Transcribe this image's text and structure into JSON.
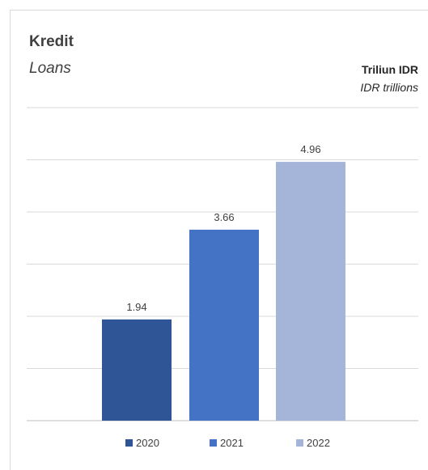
{
  "chart_data": {
    "type": "bar",
    "title": "Kredit",
    "subtitle": "Loans",
    "unit_id": "Triliun IDR",
    "unit_en": "IDR trillions",
    "categories": [
      "2020",
      "2021",
      "2022"
    ],
    "values": [
      1.94,
      3.66,
      4.96
    ],
    "data_labels": [
      "1.94",
      "3.66",
      "4.96"
    ],
    "colors": [
      "#2f5597",
      "#4472c4",
      "#a5b4d9"
    ],
    "ylim": [
      0,
      6
    ],
    "grid": true,
    "legend_position": "bottom"
  }
}
